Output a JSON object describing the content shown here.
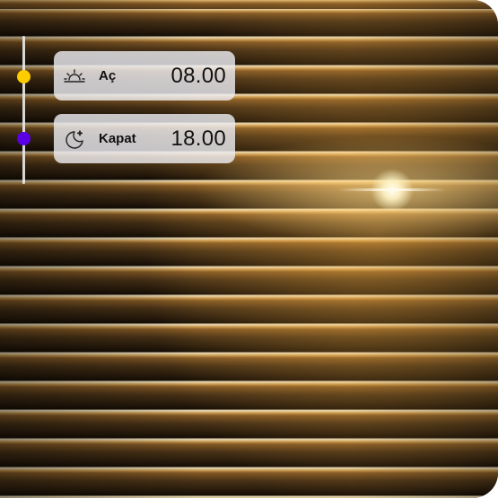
{
  "schedule": {
    "open": {
      "label": "Aç",
      "time": "08.00",
      "icon": "sunrise-icon",
      "dot_color": "#ffcc00"
    },
    "close": {
      "label": "Kapat",
      "time": "18.00",
      "icon": "moon-stars-icon",
      "dot_color": "#5a00e6"
    }
  },
  "colors": {
    "timeline": "#ebebeb",
    "card_bg": "#ebebf0"
  }
}
